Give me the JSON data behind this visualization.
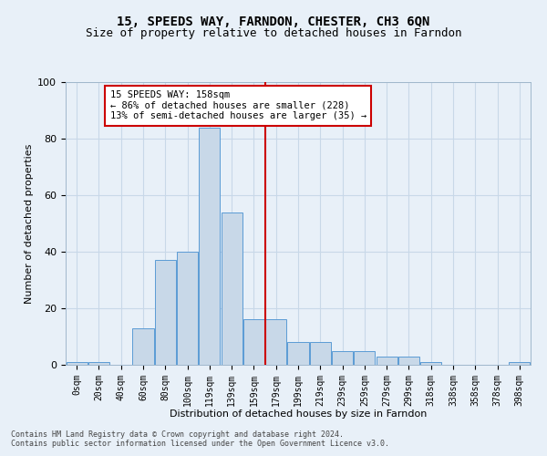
{
  "title": "15, SPEEDS WAY, FARNDON, CHESTER, CH3 6QN",
  "subtitle": "Size of property relative to detached houses in Farndon",
  "xlabel": "Distribution of detached houses by size in Farndon",
  "ylabel": "Number of detached properties",
  "bar_labels": [
    "0sqm",
    "20sqm",
    "40sqm",
    "60sqm",
    "80sqm",
    "100sqm",
    "119sqm",
    "139sqm",
    "159sqm",
    "179sqm",
    "199sqm",
    "219sqm",
    "239sqm",
    "259sqm",
    "279sqm",
    "299sqm",
    "318sqm",
    "338sqm",
    "358sqm",
    "378sqm",
    "398sqm"
  ],
  "bar_values": [
    1,
    1,
    0,
    13,
    37,
    40,
    84,
    54,
    16,
    16,
    8,
    8,
    5,
    5,
    3,
    3,
    1,
    0,
    0,
    0,
    1
  ],
  "bar_color": "#c8d8e8",
  "bar_edge_color": "#5b9bd5",
  "vline_pos": 8.5,
  "vline_color": "#cc0000",
  "annotation_text": "15 SPEEDS WAY: 158sqm\n← 86% of detached houses are smaller (228)\n13% of semi-detached houses are larger (35) →",
  "annotation_box_color": "#ffffff",
  "annotation_box_edge": "#cc0000",
  "ylim": [
    0,
    100
  ],
  "yticks": [
    0,
    20,
    40,
    60,
    80,
    100
  ],
  "grid_color": "#c8d8e8",
  "bg_color": "#e8f0f8",
  "footer1": "Contains HM Land Registry data © Crown copyright and database right 2024.",
  "footer2": "Contains public sector information licensed under the Open Government Licence v3.0.",
  "title_fontsize": 10,
  "subtitle_fontsize": 9,
  "axis_label_fontsize": 8,
  "tick_fontsize": 7,
  "footer_fontsize": 6
}
